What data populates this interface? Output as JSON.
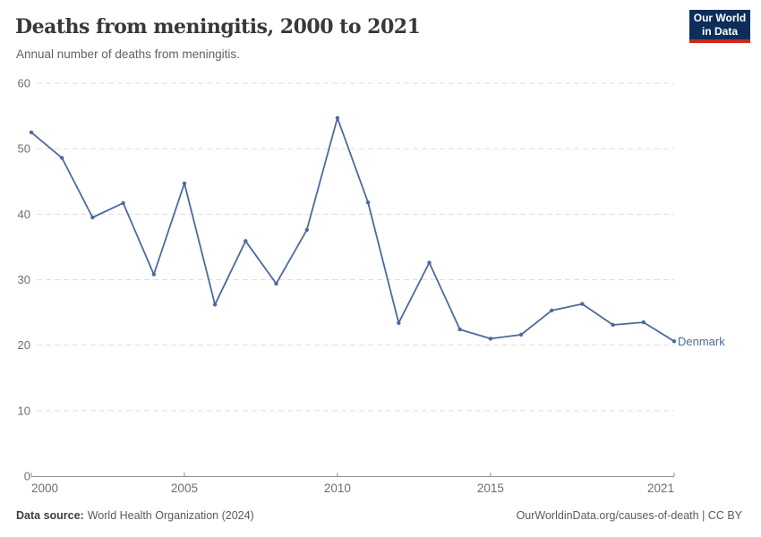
{
  "header": {
    "title": "Deaths from meningitis, 2000 to 2021",
    "subtitle": "Annual number of deaths from meningitis.",
    "logo": {
      "line1": "Our World",
      "line2": "in Data"
    }
  },
  "footer": {
    "source_label": "Data source:",
    "source_text": "World Health Organization (2024)",
    "link_text": "OurWorldinData.org/causes-of-death | CC BY"
  },
  "colors": {
    "line": "#4C6A9C",
    "logo_bg": "#0D2E5A",
    "logo_accent": "#CE261B",
    "grid": "#DEDEDE",
    "axis": "#8F8F8F",
    "tick_label": "#6E6E6E",
    "title": "#383838",
    "subtitle": "#616161",
    "footer_text": "#5B5B5B"
  },
  "chart_data": {
    "type": "line",
    "title": "Deaths from meningitis, 2000 to 2021",
    "subtitle": "Annual number of deaths from meningitis.",
    "x": [
      2000,
      2001,
      2002,
      2003,
      2004,
      2005,
      2006,
      2007,
      2008,
      2009,
      2010,
      2011,
      2012,
      2013,
      2014,
      2015,
      2016,
      2017,
      2018,
      2019,
      2020,
      2021
    ],
    "series": [
      {
        "name": "Denmark",
        "color": "#4C6A9C",
        "values": [
          52.5,
          48.6,
          39.5,
          41.7,
          30.8,
          44.7,
          26.2,
          35.9,
          29.4,
          37.6,
          54.7,
          41.8,
          23.4,
          32.6,
          22.4,
          21.0,
          21.6,
          25.3,
          26.3,
          23.1,
          23.5,
          20.6
        ]
      }
    ],
    "xlabel": "",
    "ylabel": "",
    "ylim": [
      0,
      60
    ],
    "xlim": [
      2000,
      2021
    ],
    "yticks": [
      0,
      10,
      20,
      30,
      40,
      50,
      60
    ],
    "xticks": [
      2000,
      2005,
      2010,
      2015,
      2021
    ],
    "grid": "horizontal-dashed",
    "legend_position": "end-of-line-label"
  }
}
